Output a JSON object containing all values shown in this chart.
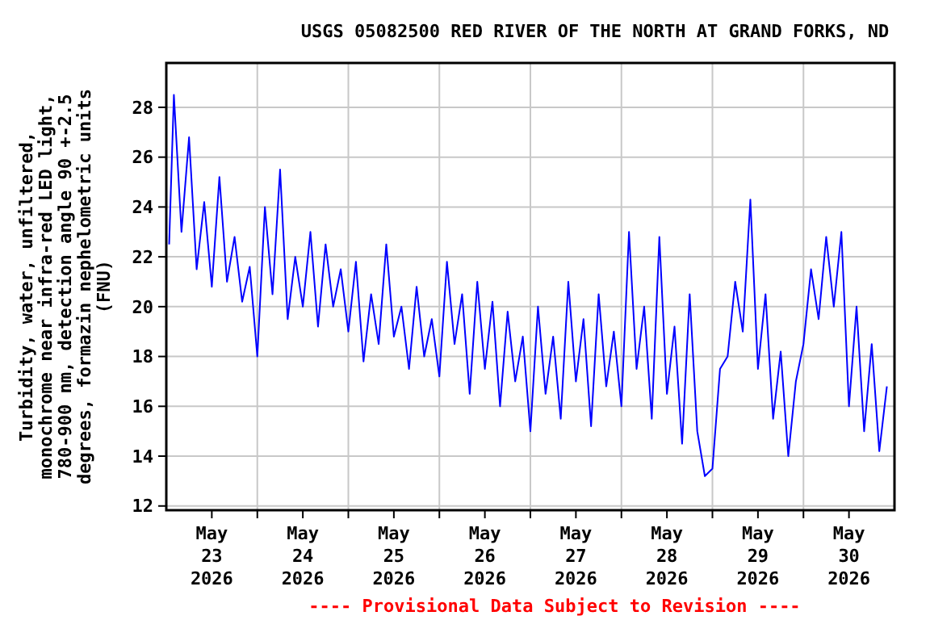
{
  "chart_data": {
    "type": "line",
    "title": "USGS 05082500 RED RIVER OF THE NORTH AT GRAND FORKS, ND",
    "ylabel": "Turbidity, water, unfiltered,\nmonochrome near infra-red LED light,\n780-900 nm, detection angle 90 +-2.5\ndegrees, formazin nephelometric units\n(FNU)",
    "annotations": [
      "---- Provisional Data Subject to Revision ----"
    ],
    "x": [
      "2026-05-23T00:45",
      "2026-05-23T02:00",
      "2026-05-23T04:00",
      "2026-05-23T06:00",
      "2026-05-23T08:00",
      "2026-05-23T10:00",
      "2026-05-23T12:00",
      "2026-05-23T14:00",
      "2026-05-23T16:00",
      "2026-05-23T18:00",
      "2026-05-23T20:00",
      "2026-05-23T22:00",
      "2026-05-24T00:00",
      "2026-05-24T02:00",
      "2026-05-24T04:00",
      "2026-05-24T06:00",
      "2026-05-24T08:00",
      "2026-05-24T10:00",
      "2026-05-24T12:00",
      "2026-05-24T14:00",
      "2026-05-24T16:00",
      "2026-05-24T18:00",
      "2026-05-24T20:00",
      "2026-05-24T22:00",
      "2026-05-25T00:00",
      "2026-05-25T02:00",
      "2026-05-25T04:00",
      "2026-05-25T06:00",
      "2026-05-25T08:00",
      "2026-05-25T10:00",
      "2026-05-25T12:00",
      "2026-05-25T14:00",
      "2026-05-25T16:00",
      "2026-05-25T18:00",
      "2026-05-25T20:00",
      "2026-05-25T22:00",
      "2026-05-26T00:00",
      "2026-05-26T02:00",
      "2026-05-26T04:00",
      "2026-05-26T06:00",
      "2026-05-26T08:00",
      "2026-05-26T10:00",
      "2026-05-26T12:00",
      "2026-05-26T14:00",
      "2026-05-26T16:00",
      "2026-05-26T18:00",
      "2026-05-26T20:00",
      "2026-05-26T22:00",
      "2026-05-27T00:00",
      "2026-05-27T02:00",
      "2026-05-27T04:00",
      "2026-05-27T06:00",
      "2026-05-27T08:00",
      "2026-05-27T10:00",
      "2026-05-27T12:00",
      "2026-05-27T14:00",
      "2026-05-27T16:00",
      "2026-05-27T18:00",
      "2026-05-27T20:00",
      "2026-05-27T22:00",
      "2026-05-28T00:00",
      "2026-05-28T02:00",
      "2026-05-28T04:00",
      "2026-05-28T06:00",
      "2026-05-28T08:00",
      "2026-05-28T10:00",
      "2026-05-28T12:00",
      "2026-05-28T14:00",
      "2026-05-28T16:00",
      "2026-05-28T18:00",
      "2026-05-28T20:00",
      "2026-05-28T22:00",
      "2026-05-29T00:00",
      "2026-05-29T02:00",
      "2026-05-29T04:00",
      "2026-05-29T06:00",
      "2026-05-29T08:00",
      "2026-05-29T10:00",
      "2026-05-29T12:00",
      "2026-05-29T14:00",
      "2026-05-29T16:00",
      "2026-05-29T18:00",
      "2026-05-29T20:00",
      "2026-05-29T22:00",
      "2026-05-30T00:00",
      "2026-05-30T02:00",
      "2026-05-30T04:00",
      "2026-05-30T06:00",
      "2026-05-30T08:00",
      "2026-05-30T10:00",
      "2026-05-30T12:00",
      "2026-05-30T14:00",
      "2026-05-30T16:00",
      "2026-05-30T18:00",
      "2026-05-30T20:00",
      "2026-05-30T22:00"
    ],
    "series": [
      {
        "color": "#0000ff",
        "values": [
          22.5,
          28.5,
          23,
          26.8,
          21.5,
          24.2,
          20.8,
          25.2,
          21,
          22.8,
          20.2,
          21.6,
          18,
          24,
          20.5,
          25.5,
          19.5,
          22,
          20,
          23,
          19.2,
          22.5,
          20,
          21.5,
          19,
          21.8,
          17.8,
          20.5,
          18.5,
          22.5,
          18.8,
          20,
          17.5,
          20.8,
          18,
          19.5,
          17.2,
          21.8,
          18.5,
          20.5,
          16.5,
          21,
          17.5,
          20.2,
          16,
          19.8,
          17,
          18.8,
          15,
          20,
          16.5,
          18.8,
          15.5,
          21,
          17,
          19.5,
          15.2,
          20.5,
          16.8,
          19,
          16,
          23,
          17.5,
          20,
          15.5,
          22.8,
          16.5,
          19.2,
          14.5,
          20.5,
          15,
          13.2,
          13.5,
          17.5,
          18,
          21,
          19,
          24.3,
          17.5,
          20.5,
          15.5,
          18.2,
          14,
          17,
          18.5,
          21.5,
          19.5,
          22.8,
          20,
          23,
          16,
          20,
          15,
          18.5,
          14.2,
          16.8
        ]
      }
    ],
    "xlim": [
      "2026-05-23T00:00",
      "2026-05-31T00:00"
    ],
    "xticks": [
      {
        "value": "2026-05-23T12:00",
        "label": "May\n23\n2026"
      },
      {
        "value": "2026-05-24T12:00",
        "label": "May\n24\n2026"
      },
      {
        "value": "2026-05-25T12:00",
        "label": "May\n25\n2026"
      },
      {
        "value": "2026-05-26T12:00",
        "label": "May\n26\n2026"
      },
      {
        "value": "2026-05-27T12:00",
        "label": "May\n27\n2026"
      },
      {
        "value": "2026-05-28T12:00",
        "label": "May\n28\n2026"
      },
      {
        "value": "2026-05-29T12:00",
        "label": "May\n29\n2026"
      },
      {
        "value": "2026-05-30T12:00",
        "label": "May\n30\n2026"
      },
      {
        "value": "2026-05-24T00:00",
        "label": null
      },
      {
        "value": "2026-05-25T00:00",
        "label": null
      },
      {
        "value": "2026-05-26T00:00",
        "label": null
      },
      {
        "value": "2026-05-27T00:00",
        "label": null
      },
      {
        "value": "2026-05-28T00:00",
        "label": null
      },
      {
        "value": "2026-05-29T00:00",
        "label": null
      },
      {
        "value": "2026-05-30T00:00",
        "label": null
      }
    ],
    "ylim": [
      11.83,
      29.78
    ],
    "yticks": [
      12,
      14,
      16,
      18,
      20,
      22,
      24,
      26,
      28
    ],
    "grid": true,
    "line_style": "solid"
  }
}
